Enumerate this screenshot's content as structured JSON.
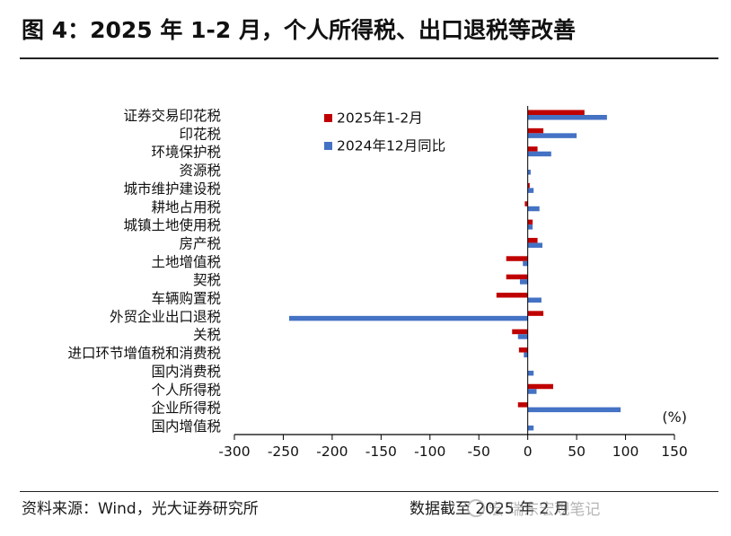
{
  "title": "图 4：2025 年 1-2 月，个人所得税、出口退税等改善",
  "source": "资料来源：Wind，光大证券研究所",
  "as_of": "数据截至 2025 年 2 月",
  "watermark": "宏 瑞东宏观笔记",
  "colors": {
    "series1": "#c00000",
    "series2": "#4472c4",
    "axis": "#000000"
  },
  "chart_data": {
    "type": "bar",
    "orientation": "horizontal",
    "unit": "(%)",
    "xlim": [
      -300,
      150
    ],
    "xticks": [
      -300,
      -250,
      -200,
      -150,
      -100,
      -50,
      0,
      50,
      100,
      150
    ],
    "grid": false,
    "legend": "top-center",
    "categories": [
      "证券交易印花税",
      "印花税",
      "环境保护税",
      "资源税",
      "城市维护建设税",
      "耕地占用税",
      "城镇土地使用税",
      "房产税",
      "土地增值税",
      "契税",
      "车辆购置税",
      "外贸企业出口退税",
      "关税",
      "进口环节增值税和消费税",
      "国内消费税",
      "个人所得税",
      "企业所得税",
      "国内增值税"
    ],
    "series": [
      {
        "name": "2025年1-2月",
        "values": [
          58,
          16,
          10,
          0,
          2,
          -3,
          5,
          10,
          -22,
          -22,
          -32,
          16,
          -16,
          -9,
          0,
          26,
          -10,
          0
        ]
      },
      {
        "name": "2024年12月同比",
        "values": [
          81,
          50,
          24,
          3,
          6,
          12,
          5,
          15,
          -5,
          -8,
          14,
          -244,
          -10,
          -4,
          6,
          9,
          95,
          6
        ]
      }
    ]
  }
}
